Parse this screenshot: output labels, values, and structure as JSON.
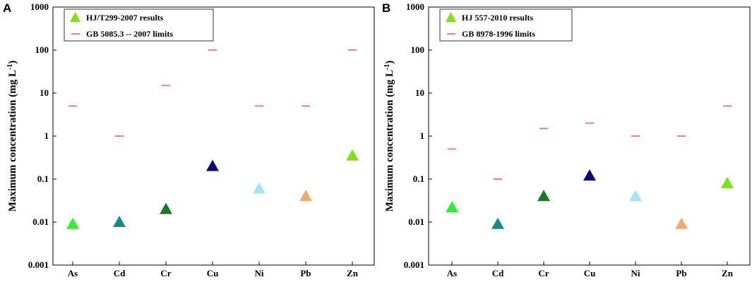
{
  "chart_data": [
    {
      "panel": "A",
      "type": "scatter",
      "yscale": "log",
      "ylim": [
        0.001,
        1000
      ],
      "ylabel": "Maximum concentration (mg L",
      "ylabel_sup": "-1",
      "ylabel_close": ")",
      "yticks": [
        {
          "value": 0.001,
          "label": "0.001"
        },
        {
          "value": 0.01,
          "label": "0.01"
        },
        {
          "value": 0.1,
          "label": "0.1"
        },
        {
          "value": 1,
          "label": "1"
        },
        {
          "value": 10,
          "label": "10"
        },
        {
          "value": 100,
          "label": "100"
        },
        {
          "value": 1000,
          "label": "1000"
        }
      ],
      "categories": [
        "As",
        "Cd",
        "Cr",
        "Cu",
        "Ni",
        "Pb",
        "Zn"
      ],
      "results": {
        "name": "HJ/T299-2007 results",
        "legend_color": "#7ee21a",
        "values": [
          0.009,
          0.01,
          0.02,
          0.2,
          0.06,
          0.04,
          0.35
        ],
        "colors": [
          "#33ee33",
          "#168a8a",
          "#157a25",
          "#0a0a7a",
          "#a6e3f5",
          "#f5a770",
          "#7ee21a"
        ]
      },
      "limits": {
        "name": "GB 5085.3 -- 2007 limits",
        "color": "#f08080",
        "values": [
          5,
          1,
          15,
          100,
          5,
          5,
          100
        ]
      }
    },
    {
      "panel": "B",
      "type": "scatter",
      "yscale": "log",
      "ylim": [
        0.001,
        1000
      ],
      "ylabel": "Maximum concentration (mg L",
      "ylabel_sup": "-1",
      "ylabel_close": ")",
      "yticks": [
        {
          "value": 0.001,
          "label": "0.001"
        },
        {
          "value": 0.01,
          "label": "0.01"
        },
        {
          "value": 0.1,
          "label": "0.1"
        },
        {
          "value": 1,
          "label": "1"
        },
        {
          "value": 10,
          "label": "10"
        },
        {
          "value": 100,
          "label": "100"
        },
        {
          "value": 1000,
          "label": "1000"
        }
      ],
      "categories": [
        "As",
        "Cd",
        "Cr",
        "Cu",
        "Ni",
        "Pb",
        "Zn"
      ],
      "results": {
        "name": "HJ 557-2010 results",
        "legend_color": "#7ee21a",
        "values": [
          0.022,
          0.009,
          0.04,
          0.12,
          0.04,
          0.009,
          0.08
        ],
        "colors": [
          "#33ee33",
          "#168a8a",
          "#157a25",
          "#0a0a7a",
          "#a6e3f5",
          "#f5a770",
          "#7ee21a"
        ]
      },
      "limits": {
        "name": "GB 8978-1996 limits",
        "color": "#f08080",
        "values": [
          0.5,
          0.1,
          1.5,
          2,
          1,
          1,
          5
        ]
      }
    }
  ]
}
